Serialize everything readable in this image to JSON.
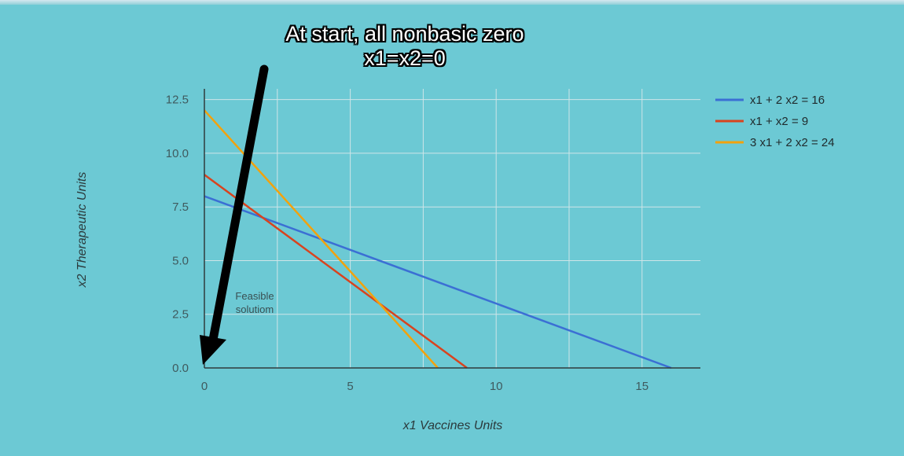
{
  "header": {
    "title_line1": "At start, all nonbasic zero",
    "title_line2": "x1=x2=0"
  },
  "annotation": {
    "line1": "Feasible",
    "line2": "solutiom"
  },
  "colors": {
    "background": "#6cc9d4",
    "grid": "#cfe5e8",
    "axis": "#2f3b3d",
    "arrow": "#000000"
  },
  "chart_data": {
    "type": "line",
    "xlabel": "x1 Vaccines Units",
    "ylabel": "x2 Therapeutic Units",
    "xlim": [
      0,
      17
    ],
    "ylim": [
      0,
      13
    ],
    "xticks": [
      0,
      5,
      10,
      15
    ],
    "yticks": [
      0.0,
      2.5,
      5.0,
      7.5,
      10.0,
      12.5
    ],
    "xtick_labels": [
      "0",
      "5",
      "10",
      "15"
    ],
    "ytick_labels": [
      "0.0",
      "2.5",
      "5.0",
      "7.5",
      "10.0",
      "12.5"
    ],
    "grid": true,
    "legend_position": "right",
    "series": [
      {
        "name": "x1 + 2 x2 = 16",
        "color": "#3b6fd4",
        "x": [
          0,
          16
        ],
        "y": [
          8,
          0
        ]
      },
      {
        "name": "x1 + x2 = 9",
        "color": "#d9431e",
        "x": [
          0,
          9
        ],
        "y": [
          9,
          0
        ]
      },
      {
        "name": "3 x1 + 2 x2 = 24",
        "color": "#f2a20d",
        "x": [
          0,
          8
        ],
        "y": [
          12,
          0
        ]
      }
    ]
  }
}
